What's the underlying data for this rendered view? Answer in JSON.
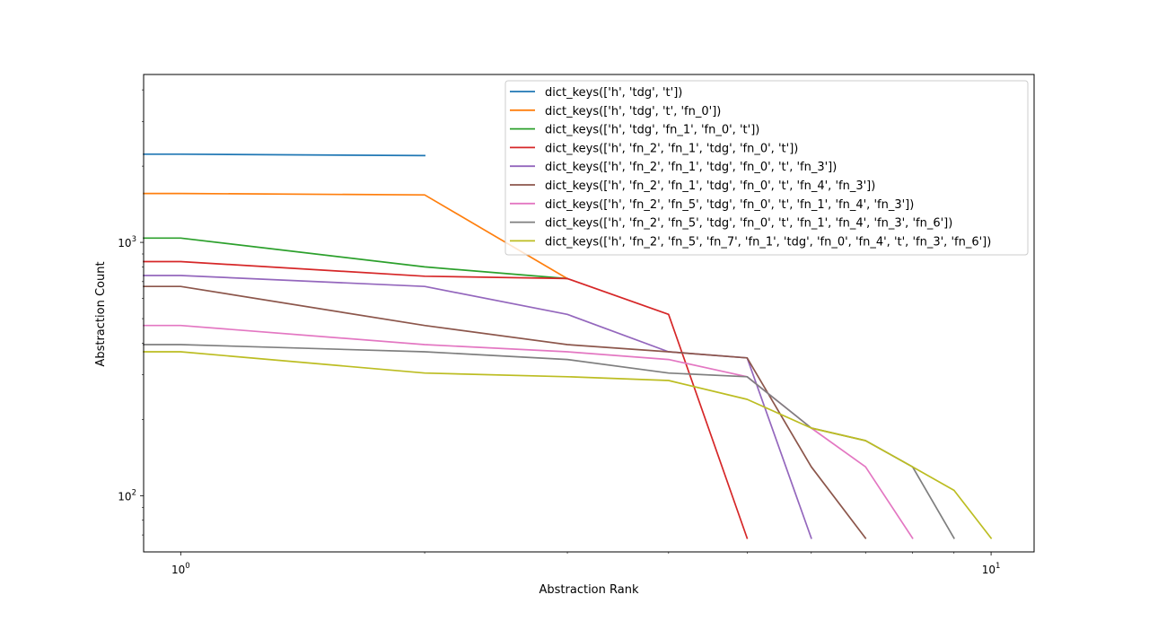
{
  "chart_data": {
    "type": "line",
    "title": "",
    "xlabel": "Abstraction Rank",
    "ylabel": "Abstraction Count",
    "xscale": "log",
    "yscale": "log",
    "xlim": [
      0.9,
      11.3
    ],
    "ylim": [
      60,
      4600
    ],
    "x_major_ticks": [
      {
        "value": 1,
        "label": "10",
        "exp": "0"
      },
      {
        "value": 10,
        "label": "10",
        "exp": "1"
      }
    ],
    "y_major_ticks": [
      {
        "value": 100,
        "label": "10",
        "exp": "2"
      },
      {
        "value": 1000,
        "label": "10",
        "exp": "3"
      }
    ],
    "grid": false,
    "legend_position": "top-right",
    "series": [
      {
        "name": "dict_keys(['h', 'tdg', 't'])",
        "color": "#1f77b4",
        "x": [
          0.9,
          1,
          2
        ],
        "y": [
          2230,
          2230,
          2200
        ]
      },
      {
        "name": "dict_keys(['h', 'tdg', 't', 'fn_0'])",
        "color": "#ff7f0e",
        "x": [
          0.9,
          1,
          2,
          3
        ],
        "y": [
          1560,
          1560,
          1540,
          720
        ]
      },
      {
        "name": "dict_keys(['h', 'tdg', 'fn_1', 'fn_0', 't'])",
        "color": "#2ca02c",
        "x": [
          0.9,
          1,
          2,
          3
        ],
        "y": [
          1040,
          1040,
          800,
          720
        ]
      },
      {
        "name": "dict_keys(['h', 'fn_2', 'fn_1', 'tdg', 'fn_0', 't'])",
        "color": "#d62728",
        "x": [
          0.9,
          1,
          2,
          3,
          4,
          5
        ],
        "y": [
          840,
          840,
          735,
          720,
          520,
          68
        ]
      },
      {
        "name": "dict_keys(['h', 'fn_2', 'fn_1', 'tdg', 'fn_0', 't', 'fn_3'])",
        "color": "#9467bd",
        "x": [
          0.9,
          1,
          2,
          3,
          4,
          5,
          6
        ],
        "y": [
          740,
          740,
          670,
          520,
          370,
          350,
          68
        ]
      },
      {
        "name": "dict_keys(['h', 'fn_2', 'fn_1', 'tdg', 'fn_0', 't', 'fn_4', 'fn_3'])",
        "color": "#8c564b",
        "x": [
          0.9,
          1,
          2,
          3,
          4,
          5,
          6,
          7
        ],
        "y": [
          670,
          670,
          470,
          395,
          370,
          350,
          130,
          68
        ]
      },
      {
        "name": "dict_keys(['h', 'fn_2', 'fn_5', 'tdg', 'fn_0', 't', 'fn_1', 'fn_4', 'fn_3'])",
        "color": "#e377c2",
        "x": [
          0.9,
          1,
          2,
          3,
          4,
          5,
          6,
          7,
          8
        ],
        "y": [
          470,
          470,
          395,
          370,
          345,
          295,
          185,
          130,
          68
        ]
      },
      {
        "name": "dict_keys(['h', 'fn_2', 'fn_5', 'tdg', 'fn_0', 't', 'fn_1', 'fn_4', 'fn_3', 'fn_6'])",
        "color": "#7f7f7f",
        "x": [
          0.9,
          1,
          2,
          3,
          4,
          5,
          6,
          7,
          8,
          9
        ],
        "y": [
          395,
          395,
          370,
          345,
          305,
          295,
          185,
          165,
          130,
          68
        ]
      },
      {
        "name": "dict_keys(['h', 'fn_2', 'fn_5', 'fn_7', 'fn_1', 'tdg', 'fn_0', 'fn_4', 't', 'fn_3', 'fn_6'])",
        "color": "#bcbd22",
        "x": [
          0.9,
          1,
          2,
          3,
          4,
          5,
          6,
          7,
          8,
          9,
          10
        ],
        "y": [
          370,
          370,
          305,
          295,
          285,
          240,
          185,
          165,
          130,
          105,
          68
        ]
      }
    ]
  }
}
